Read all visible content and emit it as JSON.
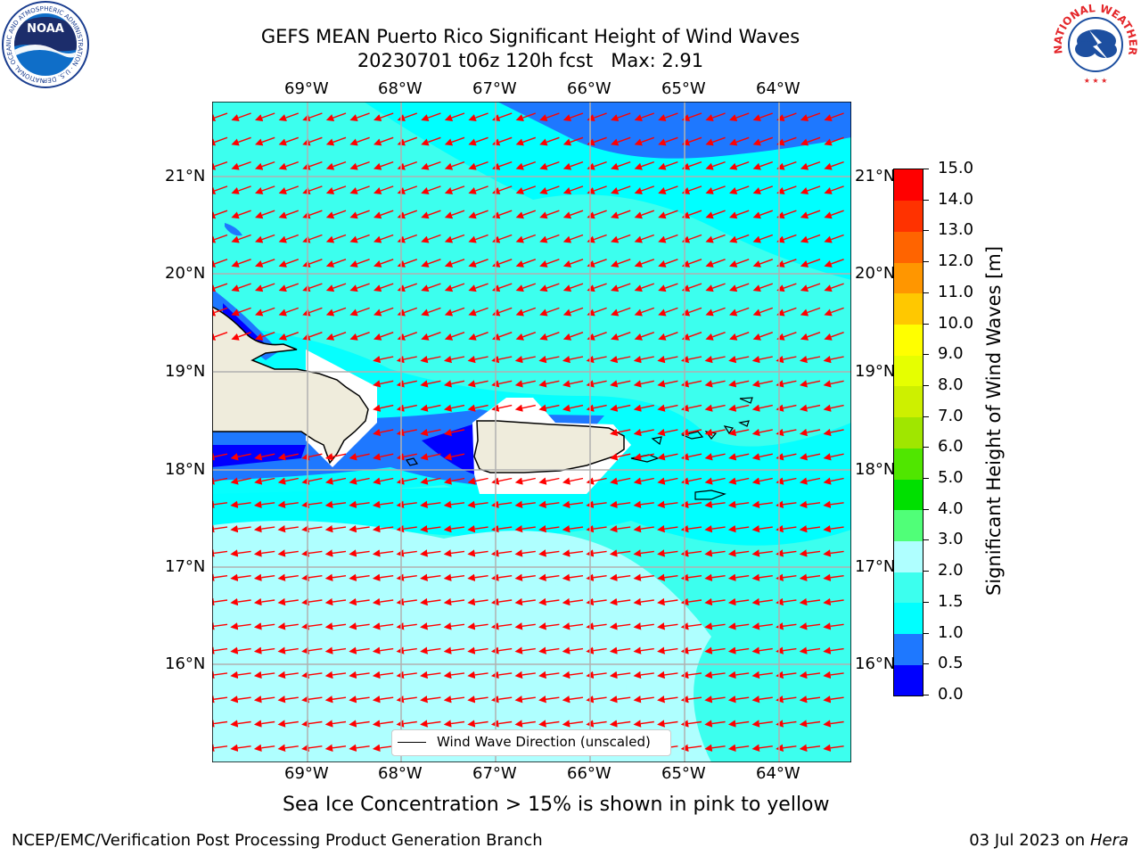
{
  "title": {
    "line1": "GEFS MEAN Puerto Rico Significant Height of Wind Waves",
    "line2": "20230701 t06z 120h fcst   Max: 2.91"
  },
  "map": {
    "lon_labels": [
      "69°W",
      "68°W",
      "67°W",
      "66°W",
      "65°W",
      "64°W"
    ],
    "lat_labels": [
      "21°N",
      "20°N",
      "19°N",
      "18°N",
      "17°N",
      "16°N"
    ],
    "legend_label": "Wind Wave Direction (unscaled)",
    "vector_color": "#ff0000",
    "land_color": "#efecdc"
  },
  "colorbar": {
    "label": "Significant Height of Wind Waves [m]",
    "ticks": [
      "0.0",
      "0.5",
      "1.0",
      "1.5",
      "2.0",
      "3.0",
      "4.0",
      "5.0",
      "6.0",
      "7.0",
      "8.0",
      "9.0",
      "10.0",
      "11.0",
      "12.0",
      "13.0",
      "14.0",
      "15.0"
    ],
    "colors": [
      "#0000ff",
      "#1e78ff",
      "#00ffff",
      "#3cffee",
      "#afffff",
      "#50ff78",
      "#00e000",
      "#50e600",
      "#a0e600",
      "#cdf000",
      "#e6ff00",
      "#ffff00",
      "#ffc800",
      "#ff9600",
      "#ff6400",
      "#ff3200",
      "#ff0000"
    ]
  },
  "caption": "Sea Ice Concentration > 15% is shown in pink to yellow",
  "footer": {
    "left": "NCEP/EMC/Verification Post Processing Product Generation Branch",
    "right_date": "03 Jul 2023 on ",
    "right_machine": "Hera"
  },
  "logos": {
    "noaa_text": "NOAA",
    "noaa_ring": "NATIONAL OCEANIC AND ATMOSPHERIC ADMINISTRATION · U.S. DEPARTMENT OF COMMERCE ·",
    "nws_ring": "NATIONAL WEATHER SERVICE"
  }
}
